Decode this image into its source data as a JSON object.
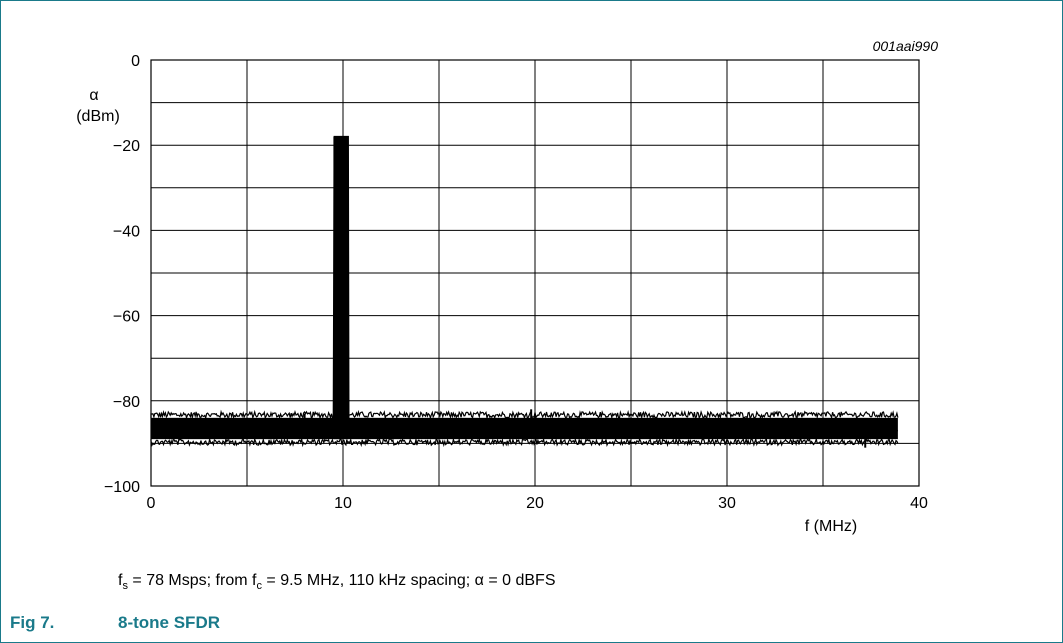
{
  "figure_code": "001aai990",
  "caption": {
    "fs_symbol": "f",
    "fs_sub": "s",
    "part1": " = 78 Msps; from ",
    "fc_symbol": "f",
    "fc_sub": "c",
    "part2": " = 9.5 MHz, 110 kHz spacing; α = 0 dBFS"
  },
  "figure_label": "Fig 7.",
  "figure_title": "8-tone SFDR",
  "colors": {
    "frame": "#1a7a8a",
    "title": "#1a7a8a",
    "trace": "#000000",
    "grid": "#000000"
  },
  "chart_data": {
    "type": "line",
    "title": "",
    "xlabel": "f (MHz)",
    "ylabel_symbol": "α",
    "ylabel_unit": "(dBm)",
    "xlim": [
      0,
      40
    ],
    "ylim": [
      -100,
      0
    ],
    "x_ticks": [
      0,
      10,
      20,
      30,
      40
    ],
    "x_tick_labels": [
      "0",
      "10",
      "20",
      "30",
      "40"
    ],
    "y_ticks": [
      0,
      -20,
      -40,
      -60,
      -80,
      -100
    ],
    "y_tick_labels": [
      "0",
      "−20",
      "−40",
      "−60",
      "−80",
      "−100"
    ],
    "grid": true,
    "grid_x_step": 5,
    "grid_y_step": 10,
    "series": [
      {
        "x": [
          0,
          5,
          9.3,
          9.5,
          9.55,
          10.27,
          10.3,
          10.5,
          15,
          20,
          25,
          30,
          35,
          38.9
        ],
        "y": [
          -86,
          -86.5,
          -86,
          -85.5,
          -18,
          -18,
          -85.5,
          -86,
          -86.5,
          -86,
          -86.5,
          -86,
          -86.5,
          -87
        ]
      }
    ],
    "noise_floor_dbm": -86,
    "noise_band_dbm": [
      -89,
      -84
    ],
    "tone_band_mhz": [
      9.5,
      10.27
    ],
    "tone_level_dbm": -18,
    "spur_peaks": [
      {
        "x": 8.0,
        "y": -83
      },
      {
        "x": 19.8,
        "y": -82
      },
      {
        "x": 37.2,
        "y": -91
      }
    ]
  }
}
